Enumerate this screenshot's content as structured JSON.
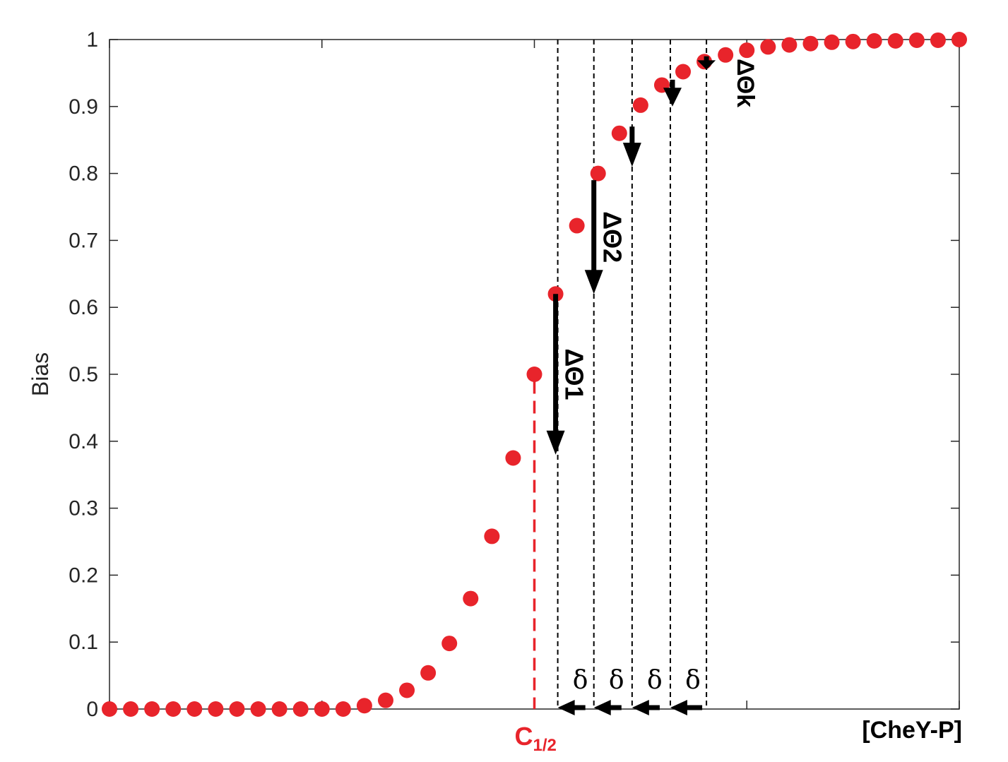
{
  "chart_data": {
    "type": "scatter",
    "title": "",
    "ylabel": "Bias",
    "xlabel": "[CheY-P]",
    "ylim": [
      0,
      1
    ],
    "yticks": [
      "0",
      "0.1",
      "0.2",
      "0.3",
      "0.4",
      "0.5",
      "0.6",
      "0.7",
      "0.8",
      "0.9",
      "1"
    ],
    "x": [
      0,
      1,
      2,
      3,
      4,
      5,
      6,
      7,
      8,
      9,
      10,
      11,
      12,
      13,
      14,
      15,
      16,
      17,
      18,
      19,
      20,
      21,
      22,
      23,
      24,
      25,
      26,
      27,
      28,
      29,
      30,
      31,
      32,
      33,
      34,
      35,
      36,
      37,
      38,
      39,
      40
    ],
    "y": [
      0,
      0,
      0,
      0,
      0,
      0,
      0,
      0,
      0,
      0,
      0,
      0,
      0.005,
      0.013,
      0.028,
      0.054,
      0.098,
      0.165,
      0.258,
      0.375,
      0.5,
      0.62,
      0.722,
      0.8,
      0.86,
      0.902,
      0.932,
      0.952,
      0.967,
      0.977,
      0.984,
      0.989,
      0.992,
      0.994,
      0.996,
      0.997,
      0.998,
      0.998,
      0.999,
      0.999,
      1.0
    ],
    "xlim": [
      0,
      40
    ],
    "marker_color": "#e8242b",
    "c_half": {
      "x": 20,
      "label": "C",
      "subscript": "1/2",
      "color": "#e8242b"
    },
    "vertical_guides_x": [
      21.1,
      22.8,
      24.6,
      26.4,
      28.1
    ],
    "delta_symbol": "δ",
    "delta_arrows": [
      {
        "from": 22.8,
        "to": 21.1
      },
      {
        "from": 24.6,
        "to": 22.8
      },
      {
        "from": 26.4,
        "to": 24.6
      },
      {
        "from": 28.1,
        "to": 26.4
      }
    ],
    "delta_arrows_drawn": [
      {
        "from": 22.4,
        "to": 21.1
      },
      {
        "from": 24.1,
        "to": 22.8
      },
      {
        "from": 25.9,
        "to": 24.6
      },
      {
        "from": 27.9,
        "to": 26.4
      }
    ],
    "theta_arrows": [
      {
        "x": 21.0,
        "y_from": 0.62,
        "y_to": 0.38,
        "label": "ΔΘ1"
      },
      {
        "x": 22.8,
        "y_from": 0.79,
        "y_to": 0.62,
        "label": "ΔΘ2"
      },
      {
        "x": 24.6,
        "y_from": 0.87,
        "y_to": 0.81,
        "label": ""
      },
      {
        "x": 26.5,
        "y_from": 0.94,
        "y_to": 0.9,
        "label": ""
      },
      {
        "x": 28.1,
        "y_from": 0.975,
        "y_to": 0.955,
        "label": "ΔΘk"
      }
    ]
  }
}
